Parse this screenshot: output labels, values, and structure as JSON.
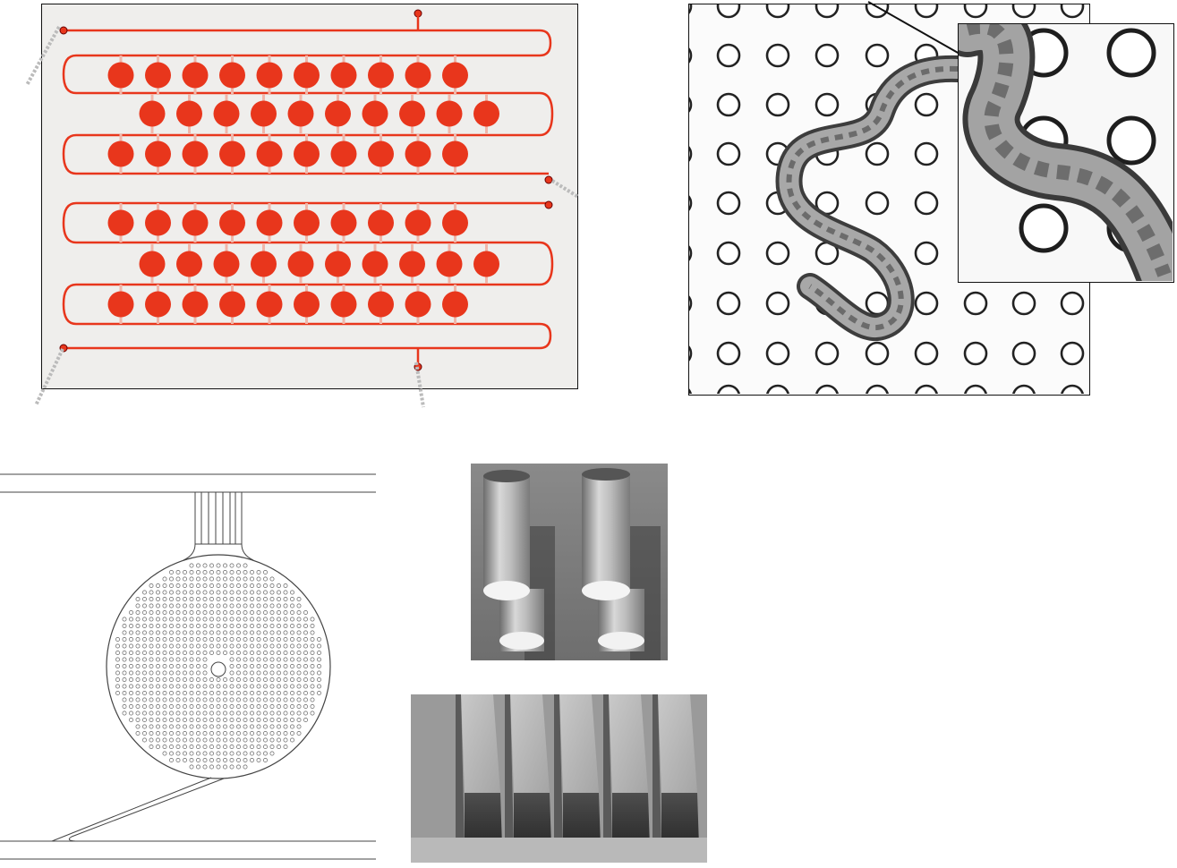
{
  "panels": {
    "chip_photo": {
      "icon": "microfluidic-chip-photo",
      "dye_color": "#e8361c",
      "chamber_rows": [
        10,
        10,
        10,
        10,
        10,
        10
      ]
    },
    "pillar_photo": {
      "icon": "worm-in-pillar-array-photo"
    },
    "zoom_inset": {
      "icon": "magnified-worm-inset"
    },
    "chamber_diagram": {
      "icon": "chamber-schematic-diagram"
    },
    "sem_pillars": {
      "icon": "sem-micropillars-image"
    },
    "sem_walls": {
      "icon": "sem-channel-walls-image"
    }
  },
  "colors": {
    "dye": "#e8361c",
    "frame": "#111111",
    "sem_gray": "#8a8a8a"
  }
}
